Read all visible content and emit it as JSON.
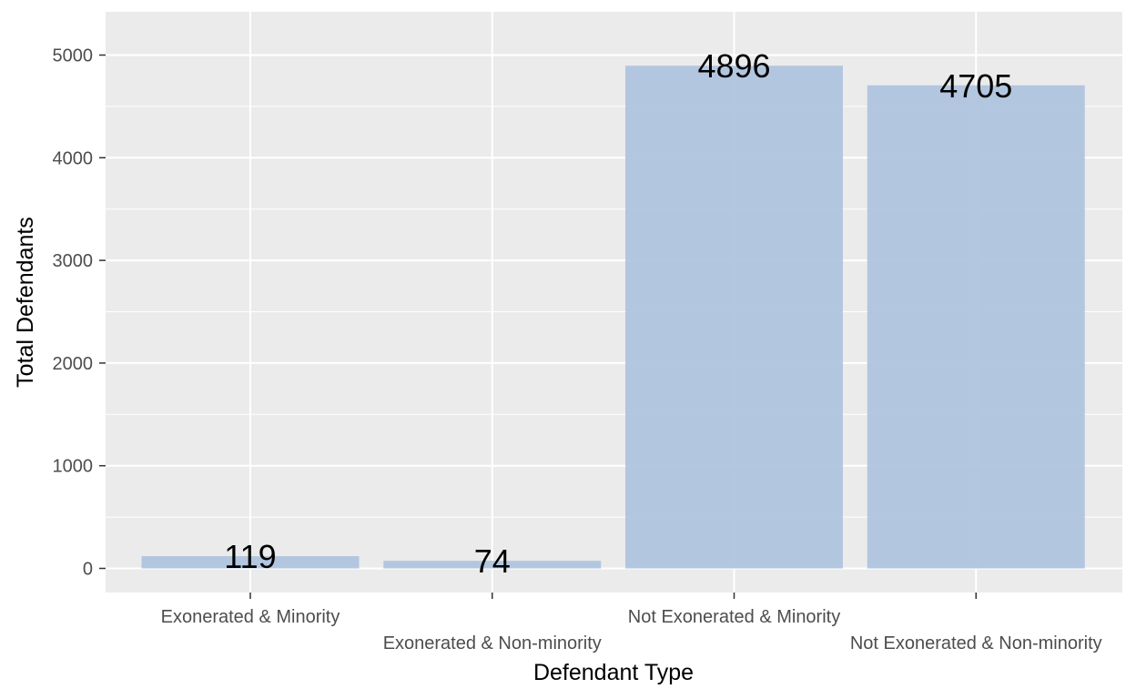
{
  "chart_data": {
    "type": "bar",
    "title": "",
    "xlabel": "Defendant Type",
    "ylabel": "Total Defendants",
    "categories": [
      "Exonerated & Minority",
      "Exonerated & Non-minority",
      "Not Exonerated & Minority",
      "Not Exonerated & Non-minority"
    ],
    "values": [
      119,
      74,
      4896,
      4705
    ],
    "data_labels": [
      "119",
      "74",
      "4896",
      "4705"
    ],
    "ylim": [
      0,
      5400
    ],
    "yticks": [
      0,
      1000,
      2000,
      3000,
      4000,
      5000
    ],
    "ytick_labels": [
      "0",
      "1000",
      "2000",
      "3000",
      "4000",
      "5000"
    ],
    "grid": true,
    "legend": "none",
    "colors": {
      "bar": "#b0c4de",
      "panel": "#ebebeb",
      "grid": "#ffffff",
      "tick_text": "#4d4d4d",
      "label_text": "#000000"
    }
  }
}
